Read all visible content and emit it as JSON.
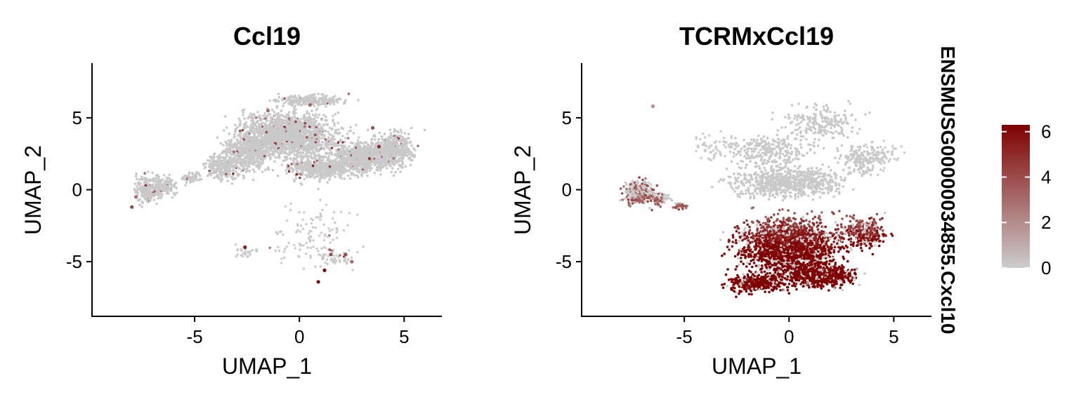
{
  "chart_data": [
    {
      "type": "scatter",
      "title": "Ccl19",
      "xlabel": "UMAP_1",
      "ylabel": "UMAP_2",
      "xlim": [
        -9.9,
        6.8
      ],
      "ylim": [
        -8.8,
        8.8
      ],
      "x_ticks": [
        "-5",
        "0",
        "5"
      ],
      "y_ticks": [
        "5",
        "0",
        "-5"
      ],
      "x_tick_values": [
        -5,
        0,
        5
      ],
      "y_tick_values": [
        5,
        0,
        -5
      ],
      "grid": false,
      "color_scale": {
        "low": "#cccccc",
        "high": "#7f0000"
      },
      "series": [
        {
          "points": [
            {
              "x": 0.0,
              "y": 3.5,
              "value": 0
            },
            {
              "x": -2.0,
              "y": 4.0,
              "value": 0
            },
            {
              "x": 2.5,
              "y": 2.0,
              "value": 0
            },
            {
              "x": 4.5,
              "y": 2.5,
              "value": 0
            },
            {
              "x": -7.2,
              "y": 0.0,
              "value": 0
            },
            {
              "x": -2.6,
              "y": -4.0,
              "value": 5.5
            },
            {
              "x": 1.2,
              "y": -5.6,
              "value": 6
            },
            {
              "x": 0.9,
              "y": -6.4,
              "value": 6
            },
            {
              "x": 1.5,
              "y": -4.5,
              "value": 4
            },
            {
              "x": 2.2,
              "y": -4.5,
              "value": 4
            },
            {
              "x": 2.5,
              "y": -5.0,
              "value": 3
            },
            {
              "x": -8.0,
              "y": -1.2,
              "value": 4
            },
            {
              "x": -7.8,
              "y": -0.5,
              "value": 3
            },
            {
              "x": 3.5,
              "y": 4.3,
              "value": 4
            },
            {
              "x": 3.8,
              "y": 3.0,
              "value": 5
            },
            {
              "x": -1.5,
              "y": 5.5,
              "value": 3
            },
            {
              "x": 0.5,
              "y": 5.9,
              "value": 3
            }
          ]
        }
      ]
    },
    {
      "type": "scatter",
      "title": "TCRMxCcl19",
      "xlabel": "UMAP_1",
      "ylabel": "UMAP_2",
      "xlim": [
        -9.9,
        6.8
      ],
      "ylim": [
        -8.8,
        8.8
      ],
      "x_ticks": [
        "-5",
        "0",
        "5"
      ],
      "y_ticks": [
        "5",
        "0",
        "-5"
      ],
      "x_tick_values": [
        -5,
        0,
        5
      ],
      "y_tick_values": [
        5,
        0,
        -5
      ],
      "grid": false,
      "color_scale": {
        "low": "#cccccc",
        "high": "#7f0000"
      },
      "series": [
        {
          "points": [
            {
              "x": 0.5,
              "y": -6.0,
              "value": 6
            },
            {
              "x": 1.5,
              "y": -5.8,
              "value": 6
            },
            {
              "x": -0.5,
              "y": -4.5,
              "value": 5
            },
            {
              "x": 0.0,
              "y": -2.0,
              "value": 4
            },
            {
              "x": 2.5,
              "y": -3.0,
              "value": 4
            },
            {
              "x": -2.0,
              "y": -6.8,
              "value": 5
            },
            {
              "x": -7.0,
              "y": -0.5,
              "value": 3
            },
            {
              "x": 0.0,
              "y": 5.0,
              "value": 0
            },
            {
              "x": 3.0,
              "y": 3.0,
              "value": 0
            },
            {
              "x": -6.5,
              "y": 5.8,
              "value": 2
            }
          ]
        }
      ]
    }
  ],
  "legend": {
    "title": "ENSMUSG00000034855.Cxcl10",
    "ticks": [
      "6",
      "4",
      "2",
      "0"
    ],
    "tick_values": [
      6,
      4,
      2,
      0
    ],
    "range": [
      0,
      6.3
    ]
  }
}
